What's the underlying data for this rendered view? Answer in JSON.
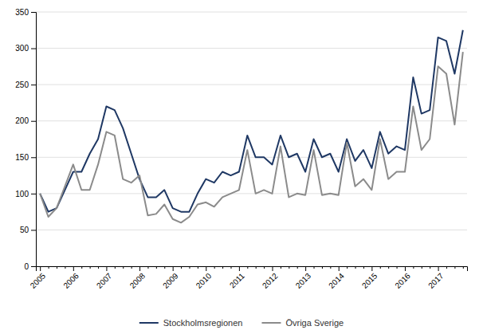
{
  "chart_data": {
    "type": "line",
    "categories": [
      "2005",
      null,
      null,
      null,
      "2006",
      null,
      null,
      null,
      "2007",
      null,
      null,
      null,
      "2008",
      null,
      null,
      null,
      "2009",
      null,
      null,
      null,
      "2010",
      null,
      null,
      null,
      "2011",
      null,
      null,
      null,
      "2012",
      null,
      null,
      null,
      "2013",
      null,
      null,
      null,
      "2014",
      null,
      null,
      null,
      "2015",
      null,
      null,
      null,
      "2016",
      null,
      null,
      null,
      "2017",
      null,
      null,
      null
    ],
    "series": [
      {
        "name": "Stockholmsregionen",
        "color": "#1F3864",
        "values": [
          100,
          75,
          80,
          105,
          130,
          130,
          155,
          175,
          220,
          215,
          190,
          155,
          120,
          95,
          95,
          105,
          80,
          75,
          75,
          100,
          120,
          115,
          130,
          125,
          130,
          180,
          150,
          150,
          140,
          180,
          150,
          155,
          130,
          175,
          150,
          155,
          130,
          175,
          145,
          160,
          135,
          185,
          155,
          165,
          160,
          260,
          210,
          215,
          315,
          310,
          265,
          325
        ]
      },
      {
        "name": "Övriga Sverige",
        "color": "#8B8B8B",
        "values": [
          100,
          68,
          80,
          110,
          140,
          105,
          105,
          140,
          185,
          180,
          120,
          115,
          125,
          70,
          72,
          85,
          65,
          60,
          68,
          85,
          88,
          82,
          95,
          100,
          105,
          160,
          100,
          105,
          100,
          165,
          95,
          100,
          98,
          160,
          98,
          100,
          98,
          170,
          110,
          120,
          105,
          175,
          120,
          130,
          130,
          220,
          160,
          175,
          275,
          265,
          195,
          295
        ]
      }
    ],
    "ylim": [
      0,
      350
    ],
    "yticks": [
      0,
      50,
      100,
      150,
      200,
      250,
      300,
      350
    ],
    "grid": true,
    "legend": "bottom"
  }
}
